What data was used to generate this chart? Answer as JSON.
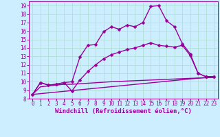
{
  "xlabel": "Windchill (Refroidissement éolien,°C)",
  "background_color": "#cceeff",
  "line_color": "#990099",
  "xlim": [
    -0.5,
    23.5
  ],
  "ylim": [
    8,
    19.5
  ],
  "x_ticks": [
    0,
    1,
    2,
    3,
    4,
    5,
    6,
    7,
    8,
    9,
    10,
    11,
    12,
    13,
    14,
    15,
    16,
    17,
    18,
    19,
    20,
    21,
    22,
    23
  ],
  "yticks": [
    8,
    9,
    10,
    11,
    12,
    13,
    14,
    15,
    16,
    17,
    18,
    19
  ],
  "grid_color": "#aaddcc",
  "marker": "D",
  "markersize": 2.5,
  "linewidth": 1.0,
  "tick_fontsize": 5.5,
  "label_fontsize": 6.5,
  "line0_x": [
    0,
    1,
    2,
    3,
    4,
    5,
    6,
    7,
    8,
    9,
    10,
    11,
    12,
    13,
    14,
    15,
    16,
    17,
    18,
    19,
    20,
    21,
    22,
    23
  ],
  "line0_y": [
    8.5,
    9.9,
    9.6,
    9.7,
    9.9,
    10.0,
    12.9,
    14.3,
    14.4,
    15.9,
    16.5,
    16.2,
    16.7,
    16.5,
    17.0,
    18.9,
    19.0,
    17.2,
    16.5,
    14.5,
    13.3,
    11.0,
    10.6,
    10.6
  ],
  "line1_x": [
    0,
    1,
    2,
    3,
    4,
    5,
    6,
    7,
    8,
    9,
    10,
    11,
    12,
    13,
    14,
    15,
    16,
    17,
    18,
    19,
    20,
    21,
    22,
    23
  ],
  "line1_y": [
    8.5,
    9.9,
    9.6,
    9.7,
    9.9,
    8.9,
    10.2,
    11.2,
    12.0,
    12.7,
    13.2,
    13.5,
    13.8,
    14.0,
    14.3,
    14.6,
    14.3,
    14.2,
    14.1,
    14.3,
    13.1,
    11.0,
    10.6,
    10.6
  ],
  "line2_x": [
    0,
    23
  ],
  "line2_y": [
    8.5,
    10.6
  ],
  "line3_x": [
    0,
    1,
    2,
    3,
    4,
    5,
    10,
    15,
    20,
    23
  ],
  "line3_y": [
    8.5,
    9.4,
    9.5,
    9.6,
    9.7,
    9.7,
    10.0,
    10.2,
    10.4,
    10.5
  ]
}
